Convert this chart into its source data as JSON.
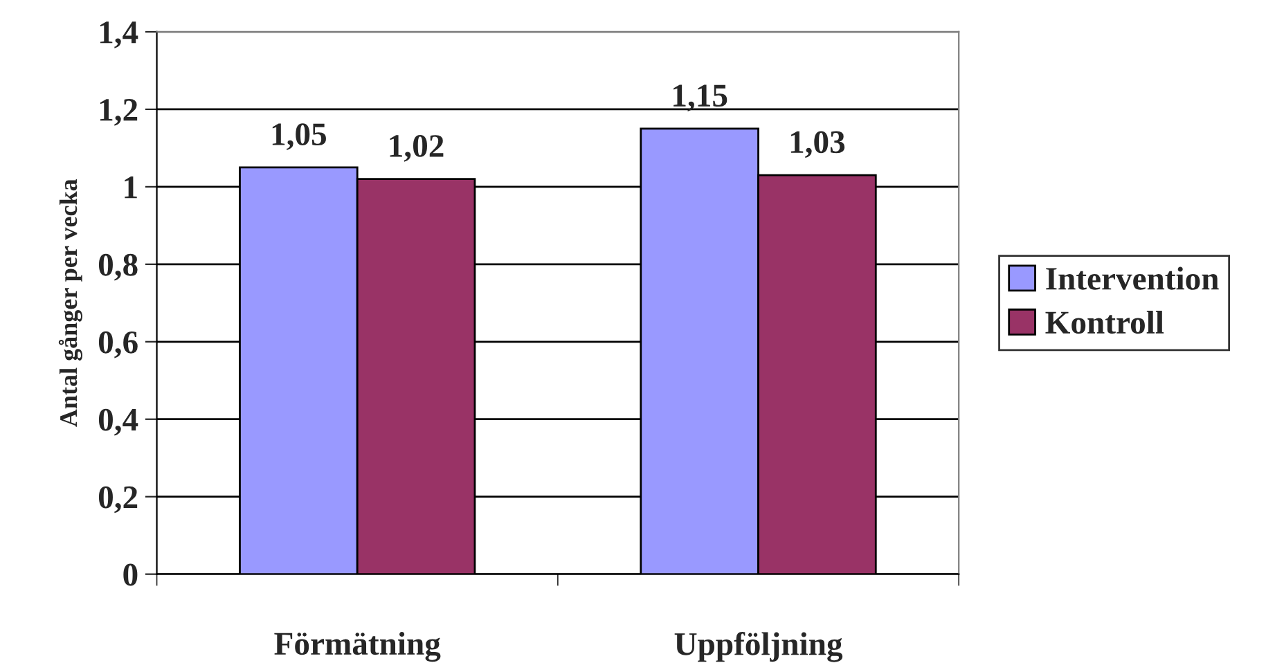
{
  "chart_data": {
    "type": "bar",
    "ylabel": "Antal gånger per vecka",
    "categories": [
      "Förmätning",
      "Uppföljning"
    ],
    "series": [
      {
        "name": "Intervention",
        "color": "#9999ff",
        "values": [
          1.05,
          1.15
        ]
      },
      {
        "name": "Kontroll",
        "color": "#993366",
        "values": [
          1.02,
          1.03
        ]
      }
    ],
    "value_labels": [
      [
        "1,05",
        "1,15"
      ],
      [
        "1,02",
        "1,03"
      ]
    ],
    "ylim": [
      0,
      1.4
    ],
    "yticks": [
      0,
      {
        "value": 0.2,
        "label": "0,2"
      },
      {
        "value": 0.4,
        "label": "0,4"
      },
      {
        "value": 0.6,
        "label": "0,6"
      },
      {
        "value": 0.8,
        "label": "0,8"
      },
      1,
      {
        "value": 1.2,
        "label": "1,2"
      },
      {
        "value": 1.4,
        "label": "1,4"
      }
    ],
    "grid": "y",
    "legend": "right"
  }
}
